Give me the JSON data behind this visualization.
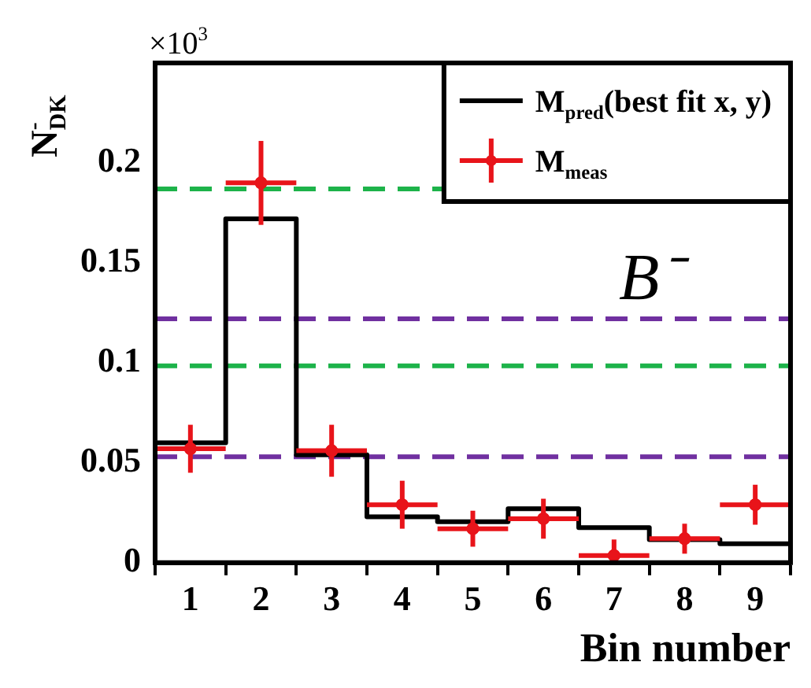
{
  "chart_data": {
    "type": "histogram",
    "xlabel": "Bin number",
    "ylabel": "N$^{-}$$_{DK}$",
    "bins": [
      0.5,
      1.5,
      2.5,
      3.5,
      4.5,
      5.5,
      6.5,
      7.5,
      8.5,
      9.5
    ],
    "series": [
      {
        "name": "M$_{pred}$(best fit x, y)",
        "color": "#000000",
        "values": [
          0.06,
          0.172,
          0.054,
          0.023,
          0.0205,
          0.027,
          0.0175,
          0.0115,
          0.0095
        ]
      },
      {
        "type": "scatter",
        "marker": "circle",
        "name": "M$_{meas}$",
        "color": "#e8141a",
        "x": [
          1,
          2,
          3,
          4,
          5,
          6,
          7,
          8,
          9
        ],
        "values": [
          0.057,
          0.19,
          0.056,
          0.029,
          0.017,
          0.022,
          0.0036,
          0.012,
          0.029
        ],
        "errors": [
          0.012,
          0.021,
          0.013,
          0.012,
          0.009,
          0.01,
          [
            0,
            0.0116
          ],
          0.0075,
          0.01
        ],
        "xerrors": [
          0.5,
          0.5,
          0.5,
          0.5,
          0.5,
          0.5,
          0.5,
          0.5,
          0.5
        ]
      }
    ],
    "xlim": [
      0.5,
      9.5
    ],
    "xticks": [
      {
        "value": 0.5,
        "label": null
      },
      1,
      {
        "value": 1.5,
        "label": null
      },
      2,
      {
        "value": 2.5,
        "label": null
      },
      3,
      {
        "value": 3.5,
        "label": null
      },
      4,
      {
        "value": 4.5,
        "label": null
      },
      5,
      {
        "value": 5.5,
        "label": null
      },
      6,
      {
        "value": 6.5,
        "label": null
      },
      7,
      {
        "value": 7.5,
        "label": null
      },
      8,
      {
        "value": 8.5,
        "label": null
      },
      9,
      {
        "value": 9.5,
        "label": null
      }
    ],
    "ylim": [
      0,
      0.25
    ],
    "yticks": [
      0,
      0.05,
      0.1,
      0.15,
      0.2
    ],
    "ref_lines": [
      {
        "axis": "y",
        "value": 0.187,
        "color": "#1db34a",
        "line_style": "dashed"
      },
      {
        "axis": "y",
        "value": 0.122,
        "color": "#7030a0",
        "line_style": "dashed"
      },
      {
        "axis": "y",
        "value": 0.0985,
        "color": "#1db34a",
        "line_style": "dashed"
      },
      {
        "axis": "y",
        "value": 0.053,
        "color": "#7030a0",
        "line_style": "dashed"
      }
    ],
    "annotations": [
      "×10$^{3}$",
      "B⁻"
    ],
    "grid": false,
    "legend": "top right"
  }
}
